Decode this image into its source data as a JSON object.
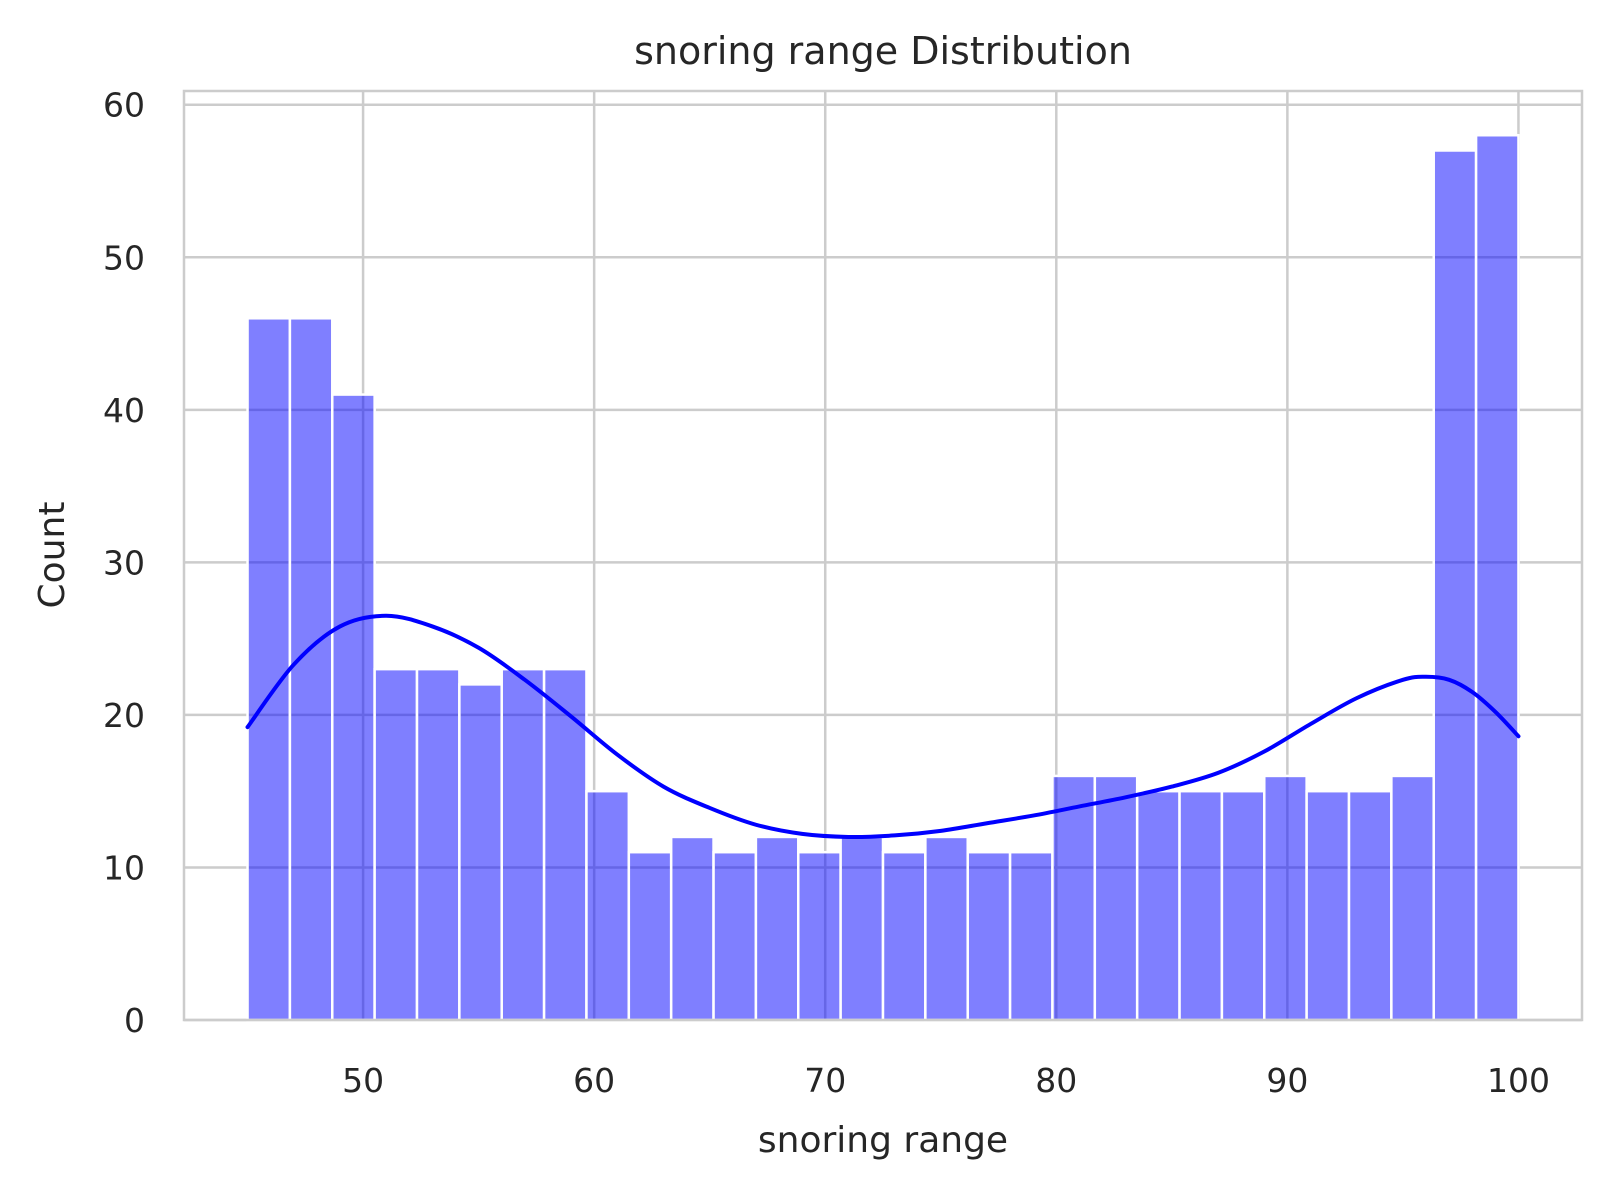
{
  "chart_data": {
    "type": "bar",
    "title": "snoring range Distribution",
    "xlabel": "snoring range",
    "ylabel": "Count",
    "xlim": [
      42.25,
      102.75
    ],
    "ylim": [
      0,
      60.9
    ],
    "xticks": [
      50,
      60,
      70,
      80,
      90,
      100
    ],
    "yticks": [
      0,
      10,
      20,
      30,
      40,
      50,
      60
    ],
    "grid": true,
    "bar_color": "#0000ff",
    "bar_opacity": 0.5,
    "kde_color": "#0000ff",
    "bins": {
      "start": 45,
      "end": 100,
      "width": 1.833,
      "counts": [
        46,
        46,
        41,
        23,
        23,
        22,
        23,
        23,
        15,
        11,
        12,
        11,
        12,
        11,
        12,
        11,
        12,
        11,
        11,
        16,
        16,
        15,
        15,
        15,
        16,
        15,
        15,
        16,
        57,
        58
      ]
    },
    "kde": {
      "x": [
        45,
        47,
        49,
        51,
        53,
        55,
        57,
        59,
        61,
        63,
        65,
        67,
        69,
        71,
        73,
        75,
        77,
        79,
        81,
        83,
        85,
        87,
        89,
        91,
        93,
        95,
        96,
        97,
        98,
        99,
        100
      ],
      "y": [
        19.2,
        23.3,
        25.8,
        26.5,
        25.8,
        24.4,
        22.3,
        19.9,
        17.4,
        15.3,
        13.9,
        12.8,
        12.2,
        12.0,
        12.1,
        12.4,
        12.9,
        13.4,
        14.0,
        14.6,
        15.3,
        16.2,
        17.6,
        19.4,
        21.1,
        22.3,
        22.5,
        22.3,
        21.5,
        20.2,
        18.6
      ]
    }
  }
}
